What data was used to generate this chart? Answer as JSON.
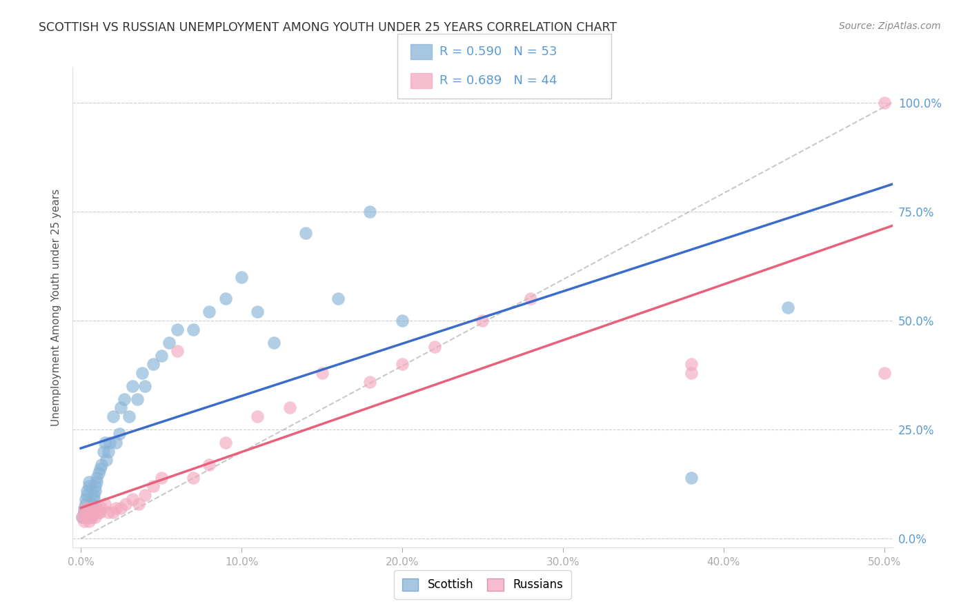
{
  "title": "SCOTTISH VS RUSSIAN UNEMPLOYMENT AMONG YOUTH UNDER 25 YEARS CORRELATION CHART",
  "source": "Source: ZipAtlas.com",
  "xlabel_ticks": [
    "0.0%",
    "10.0%",
    "20.0%",
    "30.0%",
    "40.0%",
    "50.0%"
  ],
  "ylabel_ticks": [
    "0.0%",
    "25.0%",
    "50.0%",
    "75.0%",
    "100.0%"
  ],
  "xlabel_values": [
    0.0,
    0.1,
    0.2,
    0.3,
    0.4,
    0.5
  ],
  "ylabel_values": [
    0.0,
    0.25,
    0.5,
    0.75,
    1.0
  ],
  "xlim": [
    -0.005,
    0.505
  ],
  "ylim": [
    -0.02,
    1.08
  ],
  "ylabel": "Unemployment Among Youth under 25 years",
  "scottish_color": "#89B4D8",
  "russian_color": "#F2A8BE",
  "scottish_line_color": "#3B6CC9",
  "russian_line_color": "#E8607A",
  "diagonal_color": "#BBBBBB",
  "R_scottish": 0.59,
  "N_scottish": 53,
  "R_russian": 0.689,
  "N_russian": 44,
  "background_color": "#FFFFFF",
  "grid_color": "#CCCCCC",
  "title_color": "#333333",
  "right_axis_color": "#5B9BD5",
  "scottish_x": [
    0.001,
    0.002,
    0.002,
    0.003,
    0.003,
    0.004,
    0.004,
    0.005,
    0.005,
    0.006,
    0.006,
    0.007,
    0.007,
    0.008,
    0.008,
    0.009,
    0.009,
    0.01,
    0.01,
    0.011,
    0.012,
    0.013,
    0.014,
    0.015,
    0.016,
    0.017,
    0.018,
    0.02,
    0.022,
    0.024,
    0.025,
    0.027,
    0.03,
    0.032,
    0.035,
    0.038,
    0.04,
    0.045,
    0.05,
    0.055,
    0.06,
    0.07,
    0.08,
    0.09,
    0.1,
    0.11,
    0.12,
    0.14,
    0.16,
    0.18,
    0.2,
    0.38,
    0.44
  ],
  "scottish_y": [
    0.05,
    0.06,
    0.07,
    0.08,
    0.09,
    0.1,
    0.11,
    0.12,
    0.13,
    0.05,
    0.06,
    0.07,
    0.08,
    0.09,
    0.1,
    0.11,
    0.12,
    0.13,
    0.14,
    0.15,
    0.16,
    0.17,
    0.2,
    0.22,
    0.18,
    0.2,
    0.22,
    0.28,
    0.22,
    0.24,
    0.3,
    0.32,
    0.28,
    0.35,
    0.32,
    0.38,
    0.35,
    0.4,
    0.42,
    0.45,
    0.48,
    0.48,
    0.52,
    0.55,
    0.6,
    0.52,
    0.45,
    0.7,
    0.55,
    0.75,
    0.5,
    0.14,
    0.53
  ],
  "russian_x": [
    0.001,
    0.002,
    0.002,
    0.003,
    0.003,
    0.004,
    0.005,
    0.005,
    0.006,
    0.007,
    0.007,
    0.008,
    0.009,
    0.01,
    0.011,
    0.012,
    0.013,
    0.015,
    0.017,
    0.02,
    0.022,
    0.025,
    0.028,
    0.032,
    0.036,
    0.04,
    0.045,
    0.05,
    0.06,
    0.07,
    0.08,
    0.09,
    0.11,
    0.13,
    0.15,
    0.18,
    0.2,
    0.22,
    0.25,
    0.28,
    0.38,
    0.38,
    0.5,
    0.5
  ],
  "russian_y": [
    0.05,
    0.04,
    0.06,
    0.05,
    0.07,
    0.06,
    0.04,
    0.05,
    0.06,
    0.05,
    0.07,
    0.06,
    0.05,
    0.07,
    0.06,
    0.06,
    0.07,
    0.08,
    0.06,
    0.06,
    0.07,
    0.07,
    0.08,
    0.09,
    0.08,
    0.1,
    0.12,
    0.14,
    0.43,
    0.14,
    0.17,
    0.22,
    0.28,
    0.3,
    0.38,
    0.36,
    0.4,
    0.44,
    0.5,
    0.55,
    0.38,
    0.4,
    0.38,
    1.0
  ]
}
